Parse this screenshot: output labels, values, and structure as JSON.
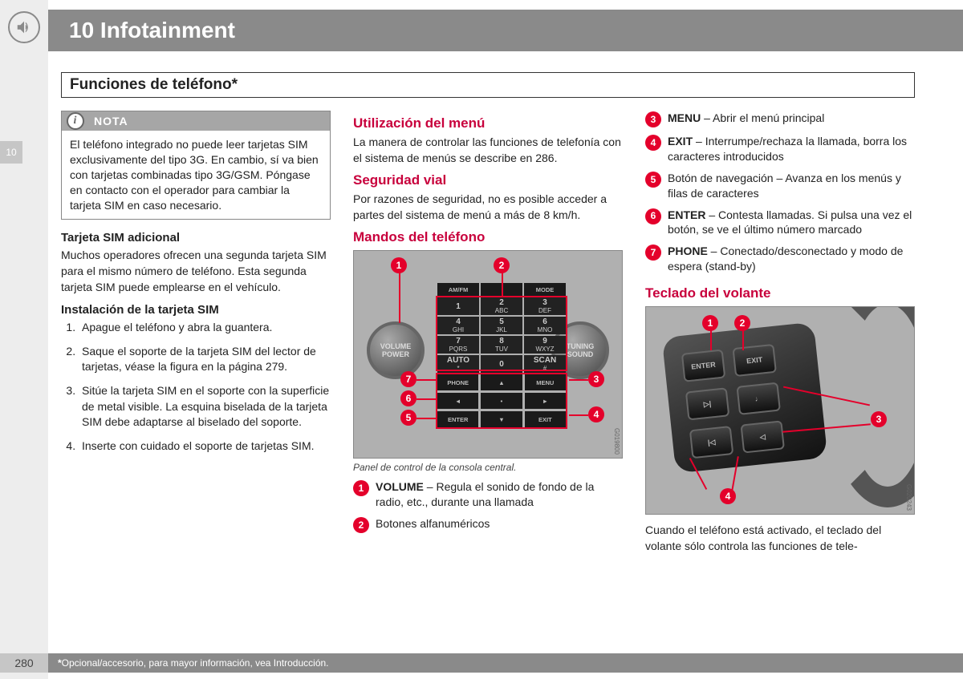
{
  "colors": {
    "accent": "#c8003c",
    "marker": "#e4002b",
    "header_bg": "#8a8a8a",
    "sidebar_bg": "#ededed",
    "tab_bg": "#c6c6c6",
    "border": "#888888"
  },
  "chapter": {
    "number": "10",
    "title": "10 Infotainment",
    "side_tab": "10"
  },
  "section_title": "Funciones de teléfono*",
  "nota": {
    "label": "NOTA",
    "body": "El teléfono integrado no puede leer tarjetas SIM exclusivamente del tipo 3G. En cambio, sí va bien con tarjetas combinadas tipo 3G/GSM. Póngase en contacto con el operador para cambiar la tarjeta SIM en caso necesario."
  },
  "col1": {
    "sim_extra_h": "Tarjeta SIM adicional",
    "sim_extra_p": "Muchos operadores ofrecen una segunda tarjeta SIM para el mismo número de teléfono. Esta segunda tarjeta SIM puede emplearse en el vehículo.",
    "install_h": "Instalación de la tarjeta SIM",
    "steps": [
      "Apague el teléfono y abra la guantera.",
      "Saque el soporte de la tarjeta SIM del lector de tarjetas, véase la figura en la página 279.",
      "Sitúe la tarjeta SIM en el soporte con la superficie de metal visible. La esquina biselada de la tarjeta SIM debe adaptarse al biselado del soporte.",
      "Inserte con cuidado el soporte de tarjetas SIM."
    ]
  },
  "col2": {
    "menu_h": "Utilización del menú",
    "menu_p": "La manera de controlar las funciones de telefonía con el sistema de menús se describe en 286.",
    "safety_h": "Seguridad vial",
    "safety_p": "Por razones de seguridad, no es posible acceder a partes del sistema de menú a más de 8 km/h.",
    "controls_h": "Mandos del teléfono",
    "fig_caption": "Panel de control de la consola central.",
    "photo_code": "G019800",
    "callouts": [
      {
        "n": "1",
        "bold": "VOLUME",
        "text": " – Regula el sonido de fondo de la radio, etc., durante una llamada"
      },
      {
        "n": "2",
        "bold": "",
        "text": "Botones alfanuméricos"
      }
    ],
    "panel": {
      "knob_left": "VOLUME\nPOWER",
      "knob_right": "TUNING\nSOUND",
      "top_labels": [
        "AM/FM",
        "",
        "MODE"
      ],
      "keys": [
        {
          "n": "1",
          "s": ""
        },
        {
          "n": "2",
          "s": "ABC"
        },
        {
          "n": "3",
          "s": "DEF"
        },
        {
          "n": "4",
          "s": "GHI"
        },
        {
          "n": "5",
          "s": "JKL"
        },
        {
          "n": "6",
          "s": "MNO"
        },
        {
          "n": "7",
          "s": "PQRS"
        },
        {
          "n": "8",
          "s": "TUV"
        },
        {
          "n": "9",
          "s": "WXYZ"
        },
        {
          "n": "AUTO",
          "s": "*"
        },
        {
          "n": "0",
          "s": ""
        },
        {
          "n": "SCAN",
          "s": "#"
        }
      ],
      "lower": [
        "PHONE",
        "▲",
        "MENU",
        "◄",
        "•",
        "►",
        "ENTER",
        "▼",
        "EXIT"
      ]
    }
  },
  "col3": {
    "callouts_top": [
      {
        "n": "3",
        "bold": "MENU",
        "text": " – Abrir el menú principal"
      },
      {
        "n": "4",
        "bold": "EXIT",
        "text": " – Interrumpe/rechaza la llamada, borra los caracteres introducidos"
      },
      {
        "n": "5",
        "bold": "",
        "text": "Botón de navegación – Avanza en los menús y filas de caracteres"
      },
      {
        "n": "6",
        "bold": "ENTER",
        "text": " – Contesta llamadas. Si pulsa una vez el botón, se ve el último número marcado"
      },
      {
        "n": "7",
        "bold": "PHONE",
        "text": " – Conectado/desconectado y modo de espera (stand-by)"
      }
    ],
    "wheel_h": "Teclado del volante",
    "photo_code": "G020243",
    "wheel_btns": {
      "enter": "ENTER",
      "exit": "EXIT",
      "fwd": "▷|",
      "mute": "♩",
      "back": "|◁",
      "vol": "◁"
    },
    "after_p": "Cuando el teléfono está activado, el teclado del volante sólo controla las funciones de tele-"
  },
  "footer": {
    "page": "280",
    "note_symbol": "*",
    "note": " Opcional/accesorio, para mayor información, vea Introducción."
  }
}
